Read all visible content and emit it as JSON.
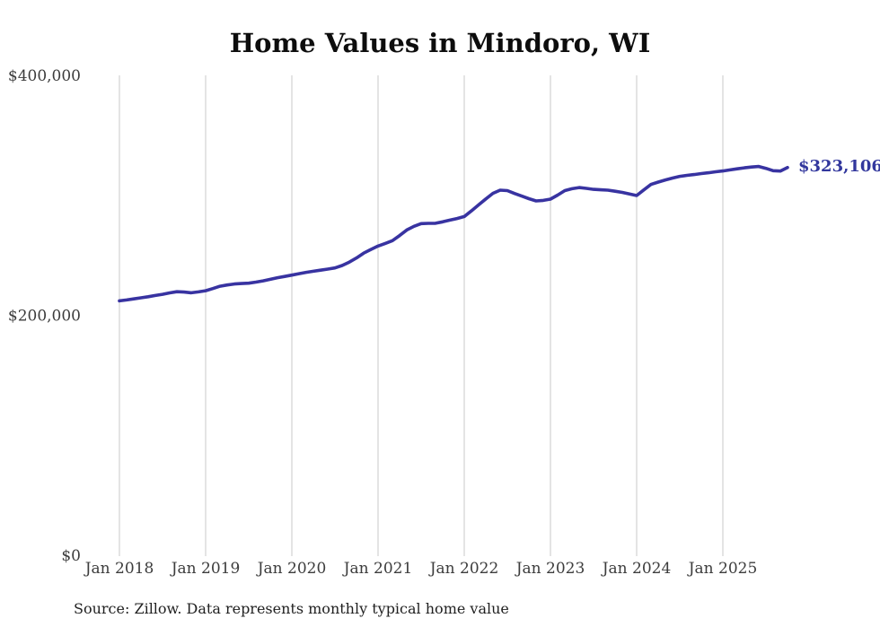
{
  "chart": {
    "title": "Home Values in Mindoro, WI",
    "end_label": "$323,106",
    "source": "Source: Zillow. Data represents monthly typical home value",
    "colors": {
      "line": "#3833a1",
      "end_label": "#32379d",
      "grid": "#c9c9c9",
      "axis_text": "#3c3c3c",
      "title_text": "#0d0d0d",
      "source_text": "#1f1f1f",
      "background": "#ffffff"
    }
  },
  "chart_data": {
    "type": "line",
    "title": "Home Values in Mindoro, WI",
    "series_name": "Typical home value (USD)",
    "interval": "monthly",
    "x_start": "2018-01",
    "x_end": "2025-10",
    "x_tick_labels": [
      "Jan 2018",
      "Jan 2019",
      "Jan 2020",
      "Jan 2021",
      "Jan 2022",
      "Jan 2023",
      "Jan 2024",
      "Jan 2025"
    ],
    "y_ticks": [
      0,
      200000,
      400000
    ],
    "y_tick_labels": [
      "$0",
      "$200,000",
      "$400,000"
    ],
    "ylim": [
      0,
      400000
    ],
    "grid": "vertical-only",
    "legend": "none",
    "final_value": 323106,
    "final_value_label": "$323,106",
    "values": [
      212000,
      212800,
      213700,
      214600,
      215500,
      216500,
      217500,
      218700,
      219700,
      219400,
      218800,
      219500,
      220500,
      222300,
      224200,
      225300,
      226100,
      226500,
      226800,
      227700,
      228700,
      230000,
      231300,
      232400,
      233500,
      234700,
      235800,
      236700,
      237600,
      238500,
      239500,
      241500,
      244300,
      247800,
      251800,
      254900,
      257700,
      259900,
      262200,
      266500,
      271100,
      274200,
      276400,
      276600,
      276700,
      277900,
      279300,
      280700,
      282300,
      287000,
      292000,
      297000,
      301700,
      304300,
      303900,
      301500,
      299400,
      297200,
      295300,
      295800,
      296800,
      300200,
      303900,
      305500,
      306500,
      305800,
      305000,
      304600,
      304300,
      303400,
      302400,
      301100,
      299800,
      304500,
      309100,
      311000,
      312800,
      314400,
      315800,
      316600,
      317300,
      318100,
      318800,
      319600,
      320300,
      321200,
      322100,
      322900,
      323600,
      324000,
      322500,
      320500,
      320200,
      323106
    ]
  }
}
